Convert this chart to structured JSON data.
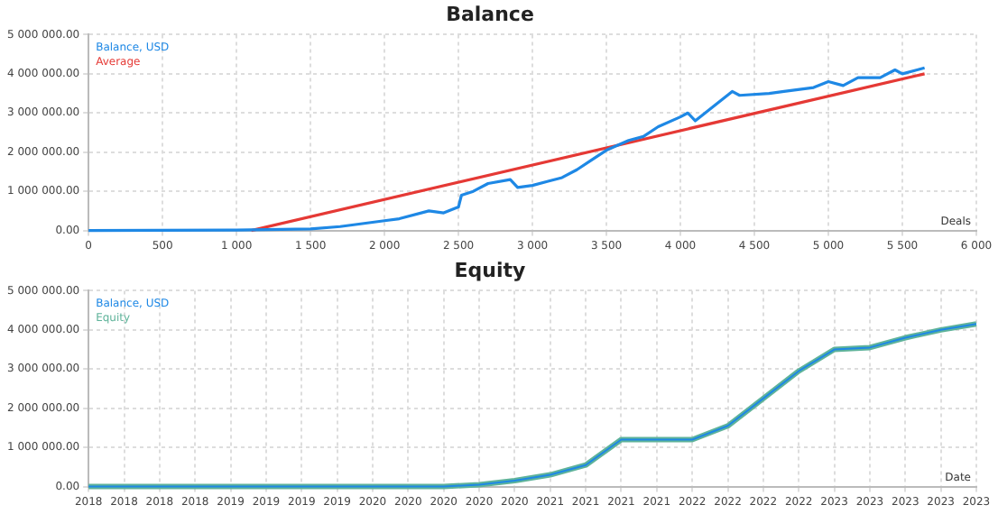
{
  "chart_data": [
    {
      "type": "line",
      "title": "Balance",
      "xlabel": "Deals",
      "legend": "top left",
      "grid": true,
      "marker": "none",
      "line_style": "solid",
      "xlim": [
        0,
        6000
      ],
      "ylim": [
        0,
        5000000
      ],
      "xticks": [
        0,
        500,
        {
          "value": 1000,
          "label": "1 000"
        },
        {
          "value": 1500,
          "label": "1 500"
        },
        {
          "value": 2000,
          "label": "2 000"
        },
        {
          "value": 2500,
          "label": "2 500"
        },
        {
          "value": 3000,
          "label": "3 000"
        },
        {
          "value": 3500,
          "label": "3 500"
        },
        {
          "value": 4000,
          "label": "4 000"
        },
        {
          "value": 4500,
          "label": "4 500"
        },
        {
          "value": 5000,
          "label": "5 000"
        },
        {
          "value": 5500,
          "label": "5 500"
        },
        {
          "value": 6000,
          "label": "6 000"
        }
      ],
      "yticks": [
        {
          "value": 0,
          "label": "0.00"
        },
        {
          "value": 1000000,
          "label": "1 000 000.00"
        },
        {
          "value": 2000000,
          "label": "2 000 000.00"
        },
        {
          "value": 3000000,
          "label": "3 000 000.00"
        },
        {
          "value": 4000000,
          "label": "4 000 000.00"
        },
        {
          "value": 5000000,
          "label": "5 000 000.00"
        }
      ],
      "series": [
        {
          "name": "Balance, USD",
          "color": "#1e88e5",
          "x": [
            0,
            1000,
            1500,
            1700,
            2000,
            2100,
            2300,
            2400,
            2500,
            2520,
            2600,
            2700,
            2850,
            2900,
            3000,
            3100,
            3200,
            3300,
            3400,
            3500,
            3650,
            3750,
            3850,
            4000,
            4050,
            4100,
            4200,
            4350,
            4400,
            4600,
            4700,
            4900,
            5000,
            5100,
            5200,
            5350,
            5450,
            5500,
            5600,
            5650
          ],
          "values": [
            0,
            10000,
            40000,
            100000,
            250000,
            300000,
            500000,
            450000,
            600000,
            900000,
            1000000,
            1200000,
            1300000,
            1100000,
            1150000,
            1250000,
            1350000,
            1550000,
            1800000,
            2050000,
            2300000,
            2400000,
            2650000,
            2900000,
            3000000,
            2800000,
            3100000,
            3550000,
            3450000,
            3500000,
            3550000,
            3650000,
            3800000,
            3700000,
            3900000,
            3900000,
            4100000,
            4000000,
            4100000,
            4150000
          ]
        },
        {
          "name": "Average",
          "color": "#e53935",
          "x": [
            1100,
            5650
          ],
          "values": [
            0,
            4000000
          ]
        }
      ]
    },
    {
      "type": "line",
      "title": "Equity",
      "xlabel": "Date",
      "legend": "top left",
      "grid": true,
      "marker": "none",
      "line_style": "solid",
      "ylim": [
        0,
        5000000
      ],
      "categories": [
        "2018",
        "2018",
        "2018",
        "2018",
        "2019",
        "2019",
        "2019",
        "2019",
        "2020",
        "2020",
        "2020",
        "2020",
        "2020",
        "2021",
        "2021",
        "2021",
        "2021",
        "2022",
        "2022",
        "2022",
        "2022",
        "2023",
        "2023",
        "2023",
        "2023",
        "2023"
      ],
      "yticks": [
        {
          "value": 0,
          "label": "0.00"
        },
        {
          "value": 1000000,
          "label": "1 000 000.00"
        },
        {
          "value": 2000000,
          "label": "2 000 000.00"
        },
        {
          "value": 3000000,
          "label": "3 000 000.00"
        },
        {
          "value": 4000000,
          "label": "4 000 000.00"
        },
        {
          "value": 5000000,
          "label": "5 000 000.00"
        }
      ],
      "series": [
        {
          "name": "Balance, USD",
          "color": "#1e88e5",
          "values": [
            0,
            0,
            0,
            0,
            0,
            0,
            0,
            0,
            0,
            0,
            0,
            50000,
            150000,
            300000,
            550000,
            1200000,
            1200000,
            1200000,
            1550000,
            2250000,
            2950000,
            3500000,
            3550000,
            3800000,
            4000000,
            4150000
          ]
        },
        {
          "name": "Equity",
          "color": "#5fb39a",
          "values": [
            0,
            0,
            0,
            0,
            0,
            0,
            0,
            0,
            0,
            0,
            0,
            50000,
            150000,
            300000,
            550000,
            1200000,
            1200000,
            1200000,
            1550000,
            2250000,
            2950000,
            3500000,
            3550000,
            3800000,
            4000000,
            4150000
          ]
        }
      ]
    }
  ]
}
